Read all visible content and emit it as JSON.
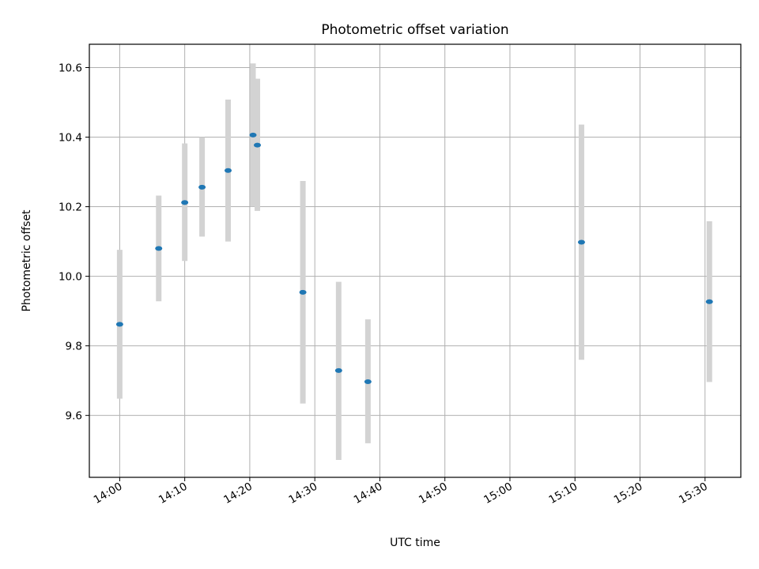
{
  "chart_data": {
    "type": "scatter",
    "title": "Photometric offset variation",
    "xlabel": "UTC time",
    "ylabel": "Photometric offset",
    "x_range": [
      "13:55:20",
      "15:35:30"
    ],
    "ylim": [
      9.422,
      10.667
    ],
    "grid": true,
    "x_ticks": [
      "14:00",
      "14:10",
      "14:20",
      "14:30",
      "14:40",
      "14:50",
      "15:00",
      "15:10",
      "15:20",
      "15:30"
    ],
    "y_ticks": [
      9.6,
      9.8,
      10.0,
      10.2,
      10.4,
      10.6
    ],
    "y_tick_labels": [
      "9.6",
      "9.8",
      "10.0",
      "10.2",
      "10.4",
      "10.6"
    ],
    "series": [
      {
        "marker_color": "#1f77b4",
        "errorbar_color": "#d3d3d3",
        "points": [
          {
            "x": "14:00:00",
            "y": 9.862,
            "low": 9.648,
            "high": 10.076
          },
          {
            "x": "14:06:00",
            "y": 10.08,
            "low": 9.928,
            "high": 10.232
          },
          {
            "x": "14:10:00",
            "y": 10.212,
            "low": 10.044,
            "high": 10.382
          },
          {
            "x": "14:12:40",
            "y": 10.256,
            "low": 10.114,
            "high": 10.4
          },
          {
            "x": "14:16:40",
            "y": 10.304,
            "low": 10.1,
            "high": 10.508
          },
          {
            "x": "14:20:30",
            "y": 10.406,
            "low": 10.2,
            "high": 10.612
          },
          {
            "x": "14:21:10",
            "y": 10.377,
            "low": 10.188,
            "high": 10.568
          },
          {
            "x": "14:28:10",
            "y": 9.954,
            "low": 9.634,
            "high": 10.274
          },
          {
            "x": "14:33:40",
            "y": 9.729,
            "low": 9.472,
            "high": 9.984
          },
          {
            "x": "14:38:10",
            "y": 9.697,
            "low": 9.52,
            "high": 9.876
          },
          {
            "x": "15:11:00",
            "y": 10.098,
            "low": 9.76,
            "high": 10.436
          },
          {
            "x": "15:30:40",
            "y": 9.927,
            "low": 9.696,
            "high": 10.158
          }
        ]
      }
    ]
  }
}
